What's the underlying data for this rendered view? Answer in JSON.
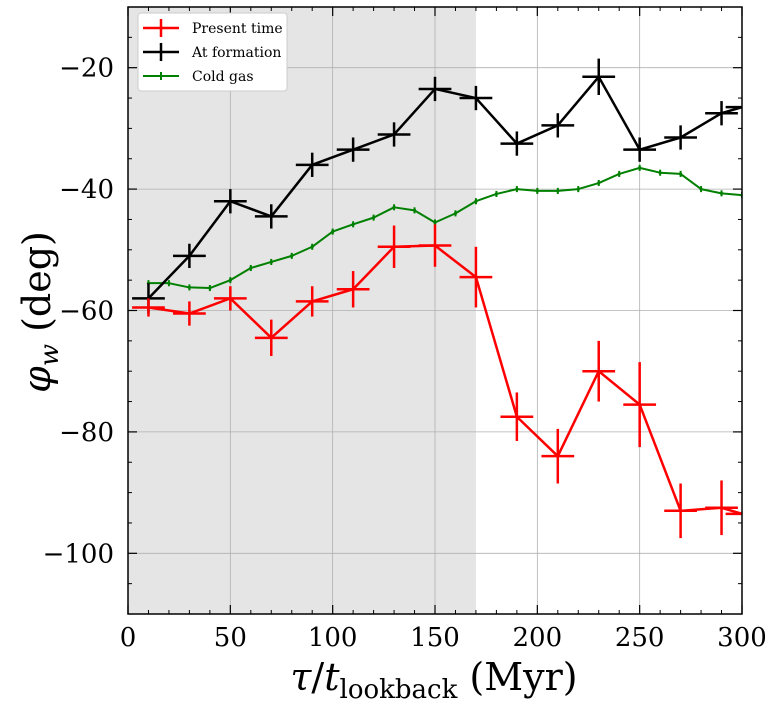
{
  "chart_data": {
    "type": "line",
    "xlabel": "τ/t_lookback (Myr)",
    "ylabel": "φ_w (deg)",
    "xlim": [
      0,
      300
    ],
    "ylim": [
      -110,
      -10
    ],
    "xticks": [
      0,
      50,
      100,
      150,
      200,
      250,
      300
    ],
    "yticks": [
      -100,
      -80,
      -60,
      -40,
      -20
    ],
    "xtick_labels": [
      "0",
      "50",
      "100",
      "150",
      "200",
      "250",
      "300"
    ],
    "ytick_labels": [
      "−100",
      "−80",
      "−60",
      "−40",
      "−20"
    ],
    "grid": true,
    "legend_position": "top-left",
    "shaded_region": {
      "x_start": 0,
      "x_end": 170,
      "color": "#e5e5e5"
    },
    "series": [
      {
        "name": "Present time",
        "color": "#ff0000",
        "x": [
          10,
          30,
          50,
          70,
          90,
          110,
          130,
          150,
          170,
          190,
          210,
          230,
          250,
          270,
          290,
          300
        ],
        "y": [
          -59.5,
          -60.5,
          -58,
          -64.5,
          -58.5,
          -56.5,
          -49.5,
          -49.3,
          -54.5,
          -77.5,
          -84,
          -70,
          -75.5,
          -93,
          -92.5,
          -93.5
        ],
        "yerr": [
          1.5,
          2,
          2,
          3,
          2.5,
          3,
          3.5,
          3.5,
          5,
          4,
          4.5,
          5,
          7,
          4.5,
          4.5,
          0
        ],
        "xerr": 8
      },
      {
        "name": "At formation",
        "color": "#000000",
        "x": [
          10,
          30,
          50,
          70,
          90,
          110,
          130,
          150,
          170,
          190,
          210,
          230,
          250,
          270,
          290,
          300
        ],
        "y": [
          -58,
          -51,
          -42,
          -44.5,
          -36,
          -33.5,
          -31,
          -23.5,
          -25,
          -32.5,
          -29.5,
          -21.5,
          -33.5,
          -31.5,
          -27.5,
          -26.5
        ],
        "yerr": [
          2.5,
          2,
          2,
          2,
          2,
          2,
          2,
          2,
          2,
          2,
          2,
          3,
          2,
          2,
          2,
          0
        ],
        "xerr": 8
      },
      {
        "name": "Cold gas",
        "color": "#008000",
        "x": [
          10,
          20,
          30,
          40,
          50,
          60,
          70,
          80,
          90,
          100,
          110,
          120,
          130,
          140,
          150,
          160,
          170,
          180,
          190,
          200,
          210,
          220,
          230,
          240,
          250,
          260,
          270,
          280,
          290,
          300
        ],
        "y": [
          -55.5,
          -55.5,
          -56.2,
          -56.3,
          -55,
          -53,
          -52,
          -51,
          -49.5,
          -47,
          -45.8,
          -44.7,
          -43,
          -43.5,
          -45.5,
          -44,
          -42,
          -40.8,
          -40,
          -40.3,
          -40.3,
          -40,
          -39,
          -37.5,
          -36.5,
          -37.3,
          -37.5,
          -40,
          -40.7,
          -41
        ],
        "yerr": 0.5,
        "xerr": 0
      }
    ]
  }
}
